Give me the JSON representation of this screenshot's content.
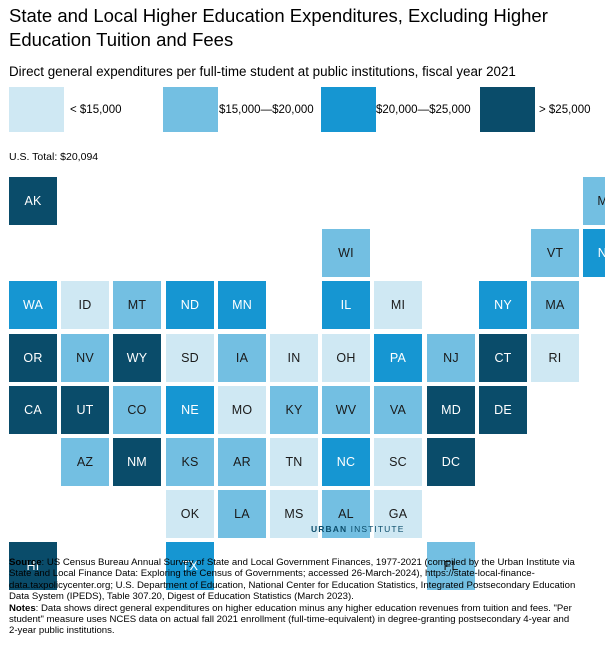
{
  "chart_data": {
    "type": "tile-map",
    "title": "State and Local Higher Education Expenditures, Excluding Higher Education Tuition and Fees",
    "subtitle": "Direct general expenditures per full-time student at public institutions, fiscal year 2021",
    "total_label": "U.S. Total: $20,094",
    "legend": [
      {
        "label": "< $15,000",
        "color": "#cfe8f3"
      },
      {
        "label": "$15,000—$20,000",
        "color": "#73bfe2"
      },
      {
        "label": "$20,000—$25,000",
        "color": "#1696d2"
      },
      {
        "label": "> $25,000",
        "color": "#0a4c6a"
      }
    ],
    "states": [
      {
        "abbr": "AK",
        "row": 0,
        "col": 0,
        "bin": 3
      },
      {
        "abbr": "ME",
        "row": 0,
        "col": 11,
        "bin": 1
      },
      {
        "abbr": "WI",
        "row": 1,
        "col": 6,
        "bin": 1
      },
      {
        "abbr": "VT",
        "row": 1,
        "col": 10,
        "bin": 1
      },
      {
        "abbr": "NH",
        "row": 1,
        "col": 11,
        "bin": 2
      },
      {
        "abbr": "WA",
        "row": 2,
        "col": 0,
        "bin": 2
      },
      {
        "abbr": "ID",
        "row": 2,
        "col": 1,
        "bin": 0
      },
      {
        "abbr": "MT",
        "row": 2,
        "col": 2,
        "bin": 1
      },
      {
        "abbr": "ND",
        "row": 2,
        "col": 3,
        "bin": 2
      },
      {
        "abbr": "MN",
        "row": 2,
        "col": 4,
        "bin": 2
      },
      {
        "abbr": "IL",
        "row": 2,
        "col": 6,
        "bin": 2
      },
      {
        "abbr": "MI",
        "row": 2,
        "col": 7,
        "bin": 0
      },
      {
        "abbr": "NY",
        "row": 2,
        "col": 9,
        "bin": 2
      },
      {
        "abbr": "MA",
        "row": 2,
        "col": 10,
        "bin": 1
      },
      {
        "abbr": "OR",
        "row": 3,
        "col": 0,
        "bin": 3
      },
      {
        "abbr": "NV",
        "row": 3,
        "col": 1,
        "bin": 1
      },
      {
        "abbr": "WY",
        "row": 3,
        "col": 2,
        "bin": 3
      },
      {
        "abbr": "SD",
        "row": 3,
        "col": 3,
        "bin": 0
      },
      {
        "abbr": "IA",
        "row": 3,
        "col": 4,
        "bin": 1
      },
      {
        "abbr": "IN",
        "row": 3,
        "col": 5,
        "bin": 0
      },
      {
        "abbr": "OH",
        "row": 3,
        "col": 6,
        "bin": 0
      },
      {
        "abbr": "PA",
        "row": 3,
        "col": 7,
        "bin": 2
      },
      {
        "abbr": "NJ",
        "row": 3,
        "col": 8,
        "bin": 1
      },
      {
        "abbr": "CT",
        "row": 3,
        "col": 9,
        "bin": 3
      },
      {
        "abbr": "RI",
        "row": 3,
        "col": 10,
        "bin": 0
      },
      {
        "abbr": "CA",
        "row": 4,
        "col": 0,
        "bin": 3
      },
      {
        "abbr": "UT",
        "row": 4,
        "col": 1,
        "bin": 3
      },
      {
        "abbr": "CO",
        "row": 4,
        "col": 2,
        "bin": 1
      },
      {
        "abbr": "NE",
        "row": 4,
        "col": 3,
        "bin": 2
      },
      {
        "abbr": "MO",
        "row": 4,
        "col": 4,
        "bin": 0
      },
      {
        "abbr": "KY",
        "row": 4,
        "col": 5,
        "bin": 1
      },
      {
        "abbr": "WV",
        "row": 4,
        "col": 6,
        "bin": 1
      },
      {
        "abbr": "VA",
        "row": 4,
        "col": 7,
        "bin": 1
      },
      {
        "abbr": "MD",
        "row": 4,
        "col": 8,
        "bin": 3
      },
      {
        "abbr": "DE",
        "row": 4,
        "col": 9,
        "bin": 3
      },
      {
        "abbr": "AZ",
        "row": 5,
        "col": 1,
        "bin": 1
      },
      {
        "abbr": "NM",
        "row": 5,
        "col": 2,
        "bin": 3
      },
      {
        "abbr": "KS",
        "row": 5,
        "col": 3,
        "bin": 1
      },
      {
        "abbr": "AR",
        "row": 5,
        "col": 4,
        "bin": 1
      },
      {
        "abbr": "TN",
        "row": 5,
        "col": 5,
        "bin": 0
      },
      {
        "abbr": "NC",
        "row": 5,
        "col": 6,
        "bin": 2
      },
      {
        "abbr": "SC",
        "row": 5,
        "col": 7,
        "bin": 0
      },
      {
        "abbr": "DC",
        "row": 5,
        "col": 8,
        "bin": 3
      },
      {
        "abbr": "OK",
        "row": 6,
        "col": 3,
        "bin": 0
      },
      {
        "abbr": "LA",
        "row": 6,
        "col": 4,
        "bin": 1
      },
      {
        "abbr": "MS",
        "row": 6,
        "col": 5,
        "bin": 0
      },
      {
        "abbr": "AL",
        "row": 6,
        "col": 6,
        "bin": 1
      },
      {
        "abbr": "GA",
        "row": 6,
        "col": 7,
        "bin": 0
      },
      {
        "abbr": "HI",
        "row": 7,
        "col": 0,
        "bin": 3
      },
      {
        "abbr": "TX",
        "row": 7,
        "col": 3,
        "bin": 2
      },
      {
        "abbr": "FL",
        "row": 7,
        "col": 8,
        "bin": 1
      }
    ]
  },
  "brand": {
    "bold": "URBAN",
    "thin": "INSTITUTE"
  },
  "notes": {
    "source_label": "Source",
    "source_text": ": US Census Bureau Annual Survey of State and Local Government Finances, 1977-2021 (compiled by the Urban Institute via State and Local Finance Data: Exploring the Census of Governments; accessed 26-March-2024), https://state-local-finance-data.taxpolicycenter.org; U.S. Department of Education, National Center for Education Statistics, Integrated Postsecondary Education Data System (IPEDS), Table 307.20, Digest of Education Statistics (March 2023).",
    "notes_label": "Notes",
    "notes_text": ": Data shows direct general expenditures on higher education minus any higher education revenues from tuition and fees. \"Per student\" measure uses NCES data on actual fall 2021 enrollment (full-time-equivalent) in degree-granting postsecondary 4-year and 2-year public institutions."
  }
}
